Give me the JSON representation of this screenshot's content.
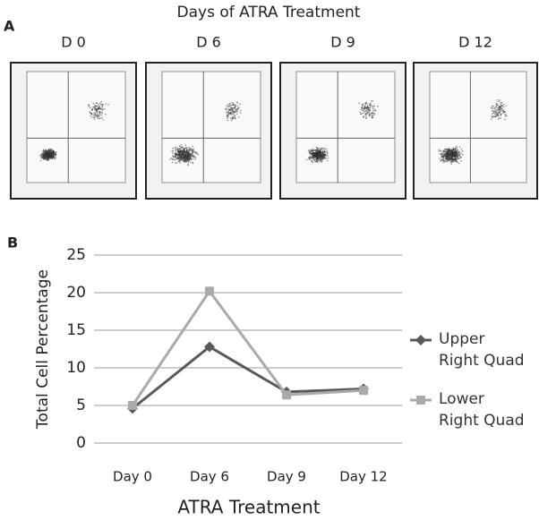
{
  "panel_a": {
    "label": "A",
    "title": "Days of ATRA Treatment",
    "plots": [
      "D 0",
      "D 6",
      "D 9",
      "D 12"
    ]
  },
  "chart_data": {
    "type": "line",
    "panel_label": "B",
    "categories": [
      "Day 0",
      "Day 6",
      "Day 9",
      "Day 12"
    ],
    "series": [
      {
        "name": "Upper Right Quad",
        "color": "#595959",
        "marker": "diamond",
        "values": [
          4.6,
          12.8,
          6.8,
          7.2
        ]
      },
      {
        "name": "Lower Right Quad",
        "color": "#aaaaaa",
        "marker": "square",
        "values": [
          5.0,
          20.2,
          6.4,
          7.0
        ]
      }
    ],
    "ylim": [
      0,
      25
    ],
    "yticks": [
      0,
      5,
      10,
      15,
      20,
      25
    ],
    "grid": true,
    "y_label": "Total Cell Percentage",
    "x_label": "ATRA Treatment",
    "legend": "right"
  }
}
